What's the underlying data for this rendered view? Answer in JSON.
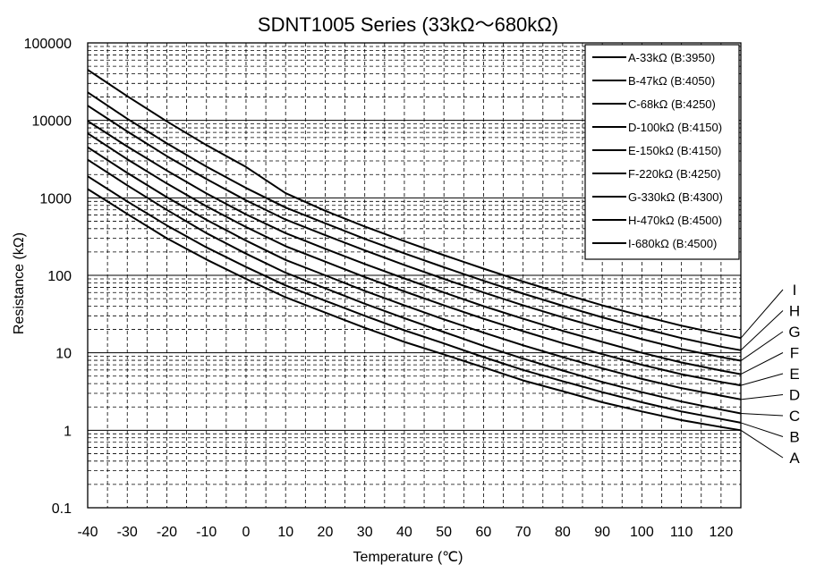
{
  "chart_data": {
    "type": "line",
    "title": "SDNT1005 Series (33kΩ～680kΩ)",
    "xlabel": "Temperature (℃)",
    "ylabel": "Resistance (kΩ)",
    "x_scale": "linear",
    "y_scale": "log",
    "xlim": [
      -40,
      125
    ],
    "ylim": [
      0.1,
      100000
    ],
    "x_ticks": [
      -40,
      -30,
      -20,
      -10,
      0,
      10,
      20,
      30,
      40,
      50,
      60,
      70,
      80,
      90,
      100,
      110,
      120
    ],
    "x_tick_labels": [
      "-40",
      "-30",
      "-20",
      "-10",
      "0",
      "10",
      "20",
      "30",
      "40",
      "50",
      "60",
      "70",
      "80",
      "90",
      "100",
      "110",
      "120"
    ],
    "y_ticks": [
      0.1,
      1,
      10,
      100,
      1000,
      10000,
      100000
    ],
    "y_tick_labels": [
      "0.1",
      "1",
      "10",
      "100",
      "1000",
      "10000",
      "100000"
    ],
    "grid": true,
    "legend_position": "top-right",
    "x": [
      -40,
      -30,
      -20,
      -10,
      0,
      10,
      20,
      30,
      40,
      50,
      60,
      70,
      80,
      90,
      100,
      110,
      120,
      125
    ],
    "series": [
      {
        "name": "A-33kΩ (B:3950)",
        "end_label": "A",
        "values": [
          1300,
          620,
          300,
          160,
          90,
          52,
          33,
          21,
          13.8,
          9.5,
          6.5,
          4.4,
          3.2,
          2.3,
          1.75,
          1.35,
          1.1,
          1.0
        ]
      },
      {
        "name": "B-47kΩ (B:4050)",
        "end_label": "B",
        "values": [
          1900,
          900,
          440,
          230,
          128,
          74,
          47,
          30,
          19.5,
          13.2,
          8.8,
          6.0,
          4.3,
          3.1,
          2.3,
          1.75,
          1.4,
          1.25
        ]
      },
      {
        "name": "C-68kΩ (B:4250)",
        "end_label": "C",
        "values": [
          3100,
          1450,
          700,
          350,
          190,
          108,
          68,
          43,
          28,
          18.5,
          12.3,
          8.4,
          5.9,
          4.2,
          3.1,
          2.35,
          1.85,
          1.65
        ]
      },
      {
        "name": "D-100kΩ (B:4150)",
        "end_label": "D",
        "values": [
          4500,
          2100,
          1020,
          520,
          280,
          158,
          100,
          63,
          41,
          27,
          18.2,
          12.5,
          8.8,
          6.3,
          4.6,
          3.5,
          2.8,
          2.5
        ]
      },
      {
        "name": "E-150kΩ (B:4150)",
        "end_label": "E",
        "values": [
          6800,
          3150,
          1530,
          780,
          420,
          238,
          150,
          95,
          62,
          41,
          27.5,
          19,
          13.3,
          9.6,
          7.0,
          5.3,
          4.2,
          3.8
        ]
      },
      {
        "name": "F-220kΩ (B:4250)",
        "end_label": "F",
        "values": [
          9800,
          4600,
          2250,
          1140,
          610,
          350,
          220,
          140,
          91,
          60,
          40,
          27.5,
          19.2,
          13.8,
          10.0,
          7.5,
          5.9,
          5.3
        ]
      },
      {
        "name": "G-330kΩ (B:4300)",
        "end_label": "G",
        "values": [
          15500,
          7200,
          3450,
          1750,
          930,
          525,
          330,
          210,
          136,
          90,
          60,
          41,
          28.8,
          20.5,
          15,
          11.2,
          8.8,
          7.9
        ]
      },
      {
        "name": "H-470kΩ (B:4500)",
        "end_label": "H",
        "values": [
          23000,
          10500,
          5050,
          2530,
          1340,
          750,
          470,
          296,
          192,
          127,
          85,
          58,
          40.5,
          28.7,
          20.8,
          15.5,
          12,
          10.8
        ]
      },
      {
        "name": "I-680kΩ (B:4500)",
        "end_label": "I",
        "values": [
          45000,
          20500,
          9700,
          4800,
          2500,
          1150,
          680,
          427,
          276,
          182,
          122,
          83,
          58,
          41,
          30,
          22.4,
          17.4,
          15.5
        ]
      }
    ]
  }
}
